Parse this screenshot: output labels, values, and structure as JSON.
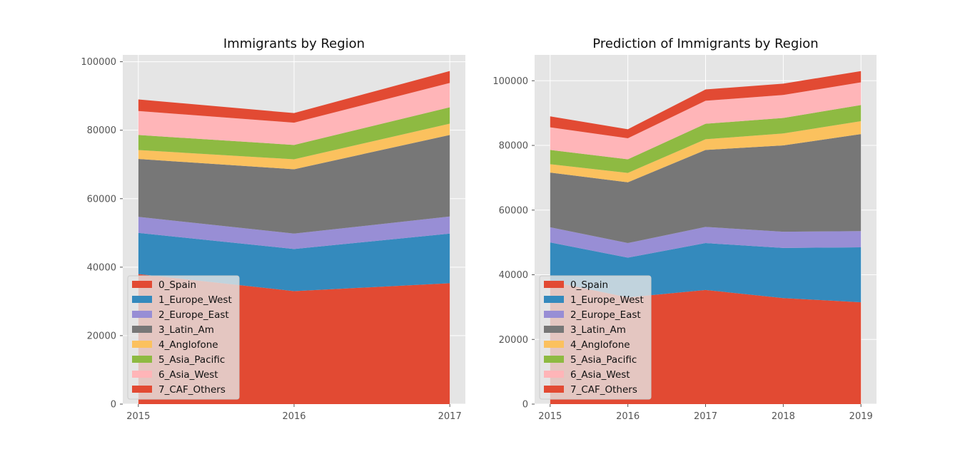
{
  "regions": [
    "0_Spain",
    "1_Europe_West",
    "2_Europe_East",
    "3_Latin_Am",
    "4_Anglofone",
    "5_Asia_Pacific",
    "6_Asia_West",
    "7_CAF_Others"
  ],
  "colors": [
    "#E24A33",
    "#348ABD",
    "#988ED5",
    "#777777",
    "#FBC15E",
    "#8EBA42",
    "#FFB5B8",
    "#E24A33"
  ],
  "chart_data": [
    {
      "type": "area",
      "title": "Immigrants by Region",
      "x": [
        2015,
        2016,
        2017
      ],
      "xticks": [
        "2015",
        "2016",
        "2017"
      ],
      "ylim": [
        0,
        102000
      ],
      "yticks": [
        "0",
        "20000",
        "40000",
        "60000",
        "80000",
        "100000"
      ],
      "grid": true,
      "legend": "lower-left",
      "series": [
        {
          "name": "0_Spain",
          "values": [
            38000,
            33000,
            35300
          ]
        },
        {
          "name": "1_Europe_West",
          "values": [
            12000,
            12300,
            14500
          ]
        },
        {
          "name": "2_Europe_East",
          "values": [
            4700,
            4500,
            5000
          ]
        },
        {
          "name": "3_Latin_Am",
          "values": [
            16900,
            18800,
            23800
          ]
        },
        {
          "name": "4_Anglofone",
          "values": [
            2600,
            2900,
            3300
          ]
        },
        {
          "name": "5_Asia_Pacific",
          "values": [
            4400,
            4200,
            4800
          ]
        },
        {
          "name": "6_Asia_West",
          "values": [
            7000,
            6500,
            7100
          ]
        },
        {
          "name": "7_CAF_Others",
          "values": [
            3400,
            2800,
            3500
          ]
        }
      ]
    },
    {
      "type": "area",
      "title": "Prediction of Immigrants by Region",
      "x": [
        2015,
        2016,
        2017,
        2018,
        2019
      ],
      "xticks": [
        "2015",
        "2016",
        "2017",
        "2018",
        "2019"
      ],
      "ylim": [
        0,
        108000
      ],
      "yticks": [
        "0",
        "20000",
        "40000",
        "60000",
        "80000",
        "100000"
      ],
      "grid": true,
      "legend": "lower-left",
      "series": [
        {
          "name": "0_Spain",
          "values": [
            38000,
            33000,
            35300,
            32800,
            31500
          ]
        },
        {
          "name": "1_Europe_West",
          "values": [
            12000,
            12300,
            14500,
            15500,
            17000
          ]
        },
        {
          "name": "2_Europe_East",
          "values": [
            4700,
            4500,
            5000,
            5000,
            5000
          ]
        },
        {
          "name": "3_Latin_Am",
          "values": [
            16900,
            18800,
            23800,
            26700,
            30000
          ]
        },
        {
          "name": "4_Anglofone",
          "values": [
            2600,
            2900,
            3300,
            3700,
            4000
          ]
        },
        {
          "name": "5_Asia_Pacific",
          "values": [
            4400,
            4200,
            4800,
            4800,
            5000
          ]
        },
        {
          "name": "6_Asia_West",
          "values": [
            7000,
            6500,
            7100,
            7100,
            7000
          ]
        },
        {
          "name": "7_CAF_Others",
          "values": [
            3400,
            2800,
            3500,
            3500,
            3500
          ]
        }
      ]
    }
  ]
}
